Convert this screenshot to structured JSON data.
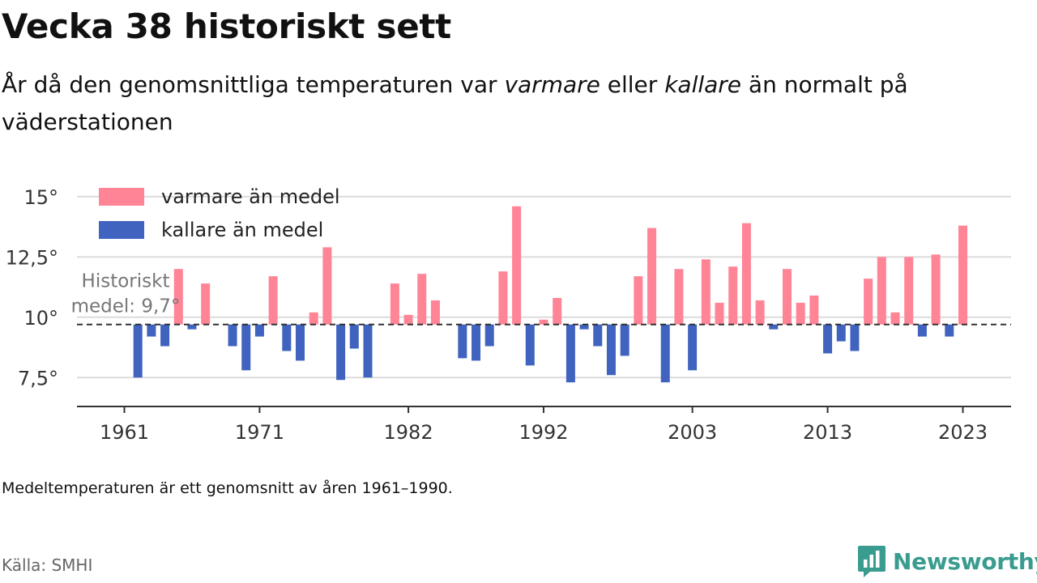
{
  "header": {
    "title": "Vecka 38 historiskt sett",
    "subtitle_parts": [
      "År då den genomsnittliga temperaturen var ",
      "varmare",
      " eller ",
      "kallare",
      " än normalt på väderstationen"
    ]
  },
  "chart_data": {
    "type": "bar",
    "title": "",
    "xlabel": "",
    "ylabel": "",
    "x": [
      1961,
      1962,
      1963,
      1964,
      1965,
      1966,
      1967,
      1968,
      1969,
      1970,
      1971,
      1972,
      1973,
      1974,
      1975,
      1976,
      1977,
      1978,
      1979,
      1980,
      1981,
      1982,
      1983,
      1984,
      1985,
      1986,
      1987,
      1988,
      1989,
      1990,
      1991,
      1992,
      1993,
      1994,
      1995,
      1996,
      1997,
      1998,
      1999,
      2000,
      2001,
      2002,
      2003,
      2004,
      2005,
      2006,
      2007,
      2008,
      2009,
      2010,
      2011,
      2012,
      2013,
      2014,
      2015,
      2016,
      2017,
      2018,
      2019,
      2020,
      2021,
      2022,
      2023
    ],
    "values": [
      9.7,
      7.5,
      9.2,
      8.8,
      12.0,
      9.5,
      11.4,
      9.7,
      8.8,
      7.8,
      9.2,
      11.7,
      8.6,
      8.2,
      10.2,
      12.9,
      7.4,
      8.7,
      7.5,
      9.7,
      11.4,
      10.1,
      11.8,
      10.7,
      9.7,
      8.3,
      8.2,
      8.8,
      11.9,
      14.6,
      8.0,
      9.9,
      10.8,
      7.3,
      9.5,
      8.8,
      7.6,
      8.4,
      11.7,
      13.7,
      7.3,
      12.0,
      7.8,
      12.4,
      10.6,
      12.1,
      13.9,
      10.7,
      9.5,
      12.0,
      10.6,
      10.9,
      8.5,
      9.0,
      8.6,
      11.6,
      12.5,
      10.2,
      12.5,
      9.2,
      12.6,
      9.2,
      13.8
    ],
    "baseline": 9.7,
    "baseline_label_line1": "Historiskt",
    "baseline_label_line2": "medel: 9,7°",
    "ylim": [
      6.3,
      15.7
    ],
    "yticks": [
      7.5,
      10,
      12.5,
      15
    ],
    "ytick_labels": [
      "7,5°",
      "10°",
      "12,5°",
      "15°"
    ],
    "xticks": [
      1961,
      1971,
      1982,
      1992,
      2003,
      2013,
      2023
    ],
    "xtick_labels": [
      "1961",
      "1971",
      "1982",
      "1992",
      "2003",
      "2013",
      "2023"
    ],
    "grid": true,
    "legend_position": "top-left",
    "legend": [
      {
        "label": "varmare än medel",
        "color": "#ff8496"
      },
      {
        "label": "kallare än medel",
        "color": "#3f63bf"
      }
    ],
    "colors": {
      "warmer": "#ff8496",
      "colder": "#3f63bf"
    }
  },
  "footer": {
    "note": "Medeltemperaturen är ett genomsnitt av åren 1961–1990.",
    "source": "Källa: SMHI",
    "brand": "Newsworthy",
    "brand_color": "#3a9c8f"
  }
}
